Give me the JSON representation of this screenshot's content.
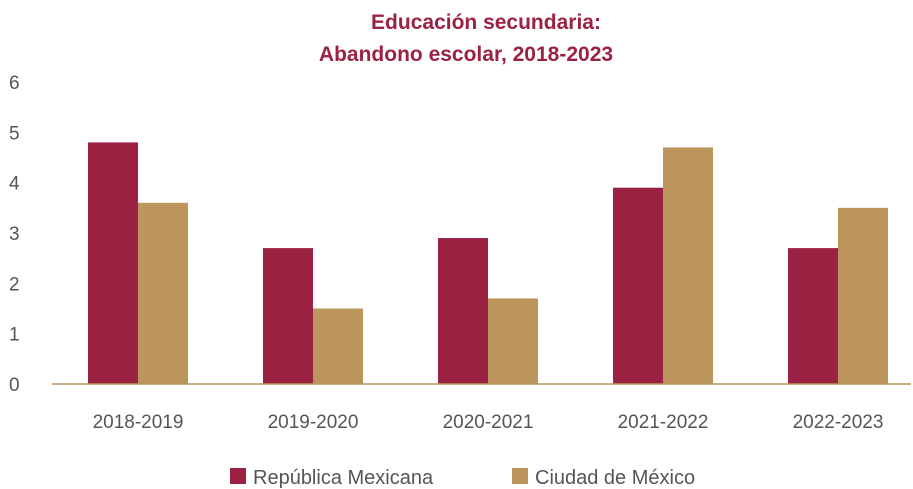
{
  "chart_data": {
    "type": "bar",
    "title_lines": [
      "Educación secundaria:",
      "Abandono escolar, 2018-2023"
    ],
    "categories": [
      "2018-2019",
      "2019-2020",
      "2020-2021",
      "2021-2022",
      "2022-2023"
    ],
    "series": [
      {
        "name": "República Mexicana",
        "values": [
          4.8,
          2.7,
          2.9,
          3.9,
          2.7
        ],
        "color": "#9b2243"
      },
      {
        "name": "Ciudad de México",
        "values": [
          3.6,
          1.5,
          1.7,
          4.7,
          3.5
        ],
        "color": "#bc955c"
      }
    ],
    "yticks": [
      "0",
      "1",
      "2",
      "3",
      "4",
      "5",
      "6"
    ],
    "ylim": [
      0,
      6
    ],
    "grid": false,
    "axis_color": "#bc955c",
    "legend_position": "bottom"
  }
}
